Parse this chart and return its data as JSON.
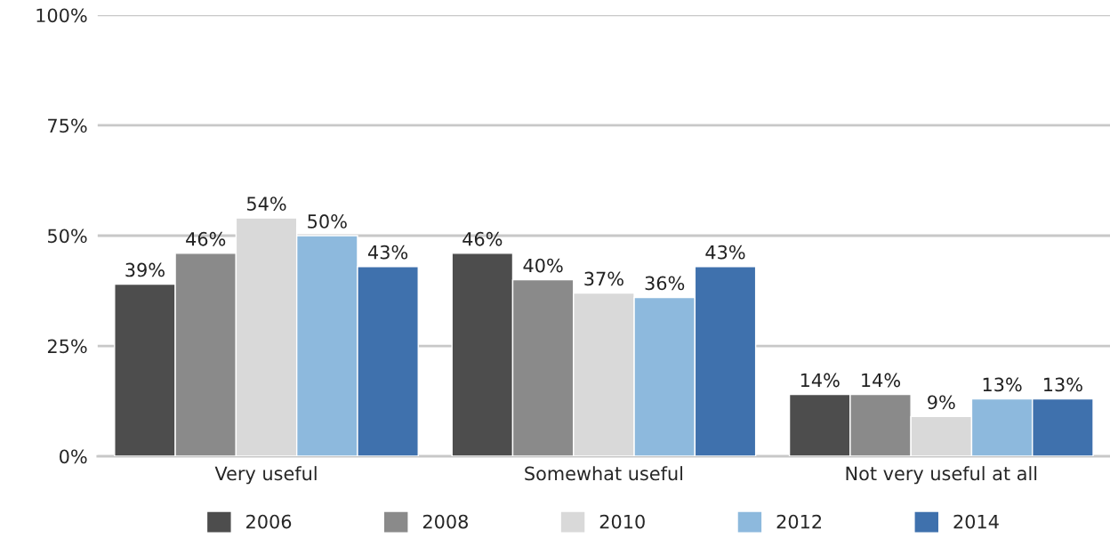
{
  "chart_data": {
    "type": "bar",
    "categories": [
      "Very useful",
      "Somewhat useful",
      "Not very useful at all"
    ],
    "series": [
      {
        "name": "2006",
        "color": "#4d4d4d",
        "values": [
          39,
          46,
          14
        ],
        "value_labels": [
          "39%",
          "46%",
          "14%"
        ]
      },
      {
        "name": "2008",
        "color": "#8a8a8a",
        "values": [
          46,
          40,
          14
        ],
        "value_labels": [
          "46%",
          "40%",
          "14%"
        ]
      },
      {
        "name": "2010",
        "color": "#d9d9d9",
        "values": [
          54,
          37,
          9
        ],
        "value_labels": [
          "54%",
          "37%",
          "9%"
        ]
      },
      {
        "name": "2012",
        "color": "#8db9dd",
        "values": [
          50,
          36,
          13
        ],
        "value_labels": [
          "50%",
          "36%",
          "13%"
        ]
      },
      {
        "name": "2014",
        "color": "#3f71ad",
        "values": [
          43,
          43,
          13
        ],
        "value_labels": [
          "43%",
          "43%",
          "13%"
        ]
      }
    ],
    "ylim": [
      0,
      100
    ],
    "yticks": [
      {
        "value": 0,
        "label": "0%"
      },
      {
        "value": 25,
        "label": "25%"
      },
      {
        "value": 50,
        "label": "50%"
      },
      {
        "value": 75,
        "label": "75%"
      },
      {
        "value": 100,
        "label": "100%"
      }
    ],
    "grid": "y",
    "legend": "bottom"
  }
}
